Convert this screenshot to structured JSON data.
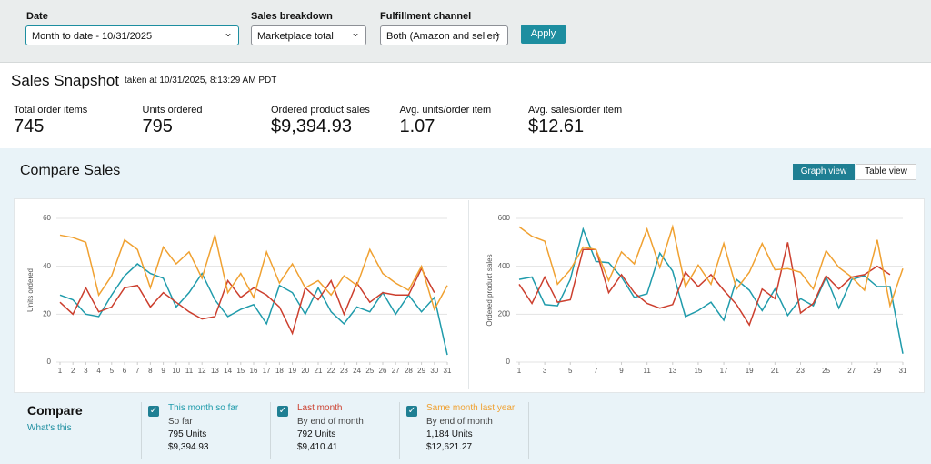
{
  "filters": [
    {
      "label": "Date",
      "value": "Month to date - 10/31/2025"
    },
    {
      "label": "Sales breakdown",
      "value": "Marketplace total"
    },
    {
      "label": "Fulfillment channel",
      "value": "Both (Amazon and seller)"
    }
  ],
  "apply": "Apply",
  "snapshot": {
    "title": "Sales Snapshot",
    "taken": "taken at 10/31/2025, 8:13:29 AM PDT",
    "metrics": [
      {
        "label": "Total order items",
        "value": "745"
      },
      {
        "label": "Units ordered",
        "value": "795"
      },
      {
        "label": "Ordered product sales",
        "value": "$9,394.93"
      },
      {
        "label": "Avg. units/order item",
        "value": "1.07"
      },
      {
        "label": "Avg. sales/order item",
        "value": "$12.61"
      }
    ]
  },
  "compare": {
    "title": "Compare Sales",
    "buttons": [
      "Graph view",
      "Table view"
    ],
    "heading": "Compare",
    "link": "What's this",
    "items": [
      {
        "sub": "So far",
        "units": "795 Units",
        "sales": "$9,394.93"
      },
      {
        "sub": "By end of month",
        "units": "792 Units",
        "sales": "$9,410.41"
      },
      {
        "sub": "By end of month",
        "units": "1,184 Units",
        "sales": "$12,621.27"
      }
    ]
  },
  "chart_data": [
    {
      "type": "line",
      "y_label": "Units ordered",
      "x": [
        1,
        2,
        3,
        4,
        5,
        6,
        7,
        8,
        9,
        10,
        11,
        12,
        13,
        14,
        15,
        16,
        17,
        18,
        19,
        20,
        21,
        22,
        23,
        24,
        25,
        26,
        27,
        28,
        29,
        30,
        31
      ],
      "xlim": [
        1,
        31
      ],
      "xticks": [
        1,
        2,
        3,
        4,
        5,
        6,
        7,
        8,
        9,
        10,
        11,
        12,
        13,
        14,
        15,
        16,
        17,
        18,
        19,
        20,
        21,
        22,
        23,
        24,
        25,
        26,
        27,
        28,
        29,
        30,
        31
      ],
      "ylim": [
        0,
        60
      ],
      "yticks": [
        0,
        20,
        40,
        60
      ],
      "grid": true,
      "series": [
        {
          "name": "This month so far",
          "color": "#1f9bab",
          "values": [
            28,
            26,
            20,
            19,
            28,
            36,
            41,
            37,
            35,
            23,
            29,
            37,
            26,
            19,
            22,
            24,
            16,
            32,
            29,
            20,
            31,
            21,
            16,
            23,
            21,
            29,
            20,
            28,
            21,
            27,
            3
          ]
        },
        {
          "name": "Last month",
          "color": "#cc3f2e",
          "values": [
            25,
            20,
            31,
            21,
            23,
            31,
            32,
            23,
            29,
            25,
            21,
            18,
            19,
            34,
            27,
            31,
            28,
            23,
            12,
            31,
            26,
            34,
            20,
            33,
            25,
            29,
            28,
            28,
            39,
            29,
            null
          ]
        },
        {
          "name": "Same month last year",
          "color": "#f0a131",
          "values": [
            53,
            52,
            50,
            28,
            36,
            51,
            47,
            31,
            48,
            41,
            46,
            35,
            53,
            29,
            37,
            27,
            46,
            33,
            41,
            31,
            34,
            28,
            36,
            32,
            47,
            37,
            33,
            30,
            40,
            22,
            32
          ]
        }
      ]
    },
    {
      "type": "line",
      "y_label": "Ordered product sales",
      "x": [
        1,
        2,
        3,
        4,
        5,
        6,
        7,
        8,
        9,
        10,
        11,
        12,
        13,
        14,
        15,
        16,
        17,
        18,
        19,
        20,
        21,
        22,
        23,
        24,
        25,
        26,
        27,
        28,
        29,
        30,
        31
      ],
      "xlim": [
        1,
        31
      ],
      "xticks": [
        1,
        3,
        5,
        7,
        9,
        11,
        13,
        15,
        17,
        19,
        21,
        23,
        25,
        27,
        29,
        31
      ],
      "ylim": [
        0,
        600
      ],
      "yticks": [
        0,
        200,
        400,
        600
      ],
      "grid": true,
      "series": [
        {
          "name": "This month so far",
          "color": "#1f9bab",
          "values": [
            345,
            355,
            240,
            235,
            345,
            555,
            420,
            415,
            355,
            270,
            285,
            455,
            380,
            190,
            215,
            250,
            175,
            345,
            300,
            215,
            305,
            195,
            265,
            235,
            355,
            225,
            345,
            360,
            315,
            315,
            35
          ]
        },
        {
          "name": "Last month",
          "color": "#cc3f2e",
          "values": [
            325,
            245,
            355,
            250,
            260,
            470,
            470,
            290,
            365,
            290,
            245,
            225,
            240,
            375,
            315,
            365,
            300,
            240,
            155,
            305,
            265,
            500,
            205,
            245,
            360,
            305,
            355,
            365,
            400,
            365,
            null
          ]
        },
        {
          "name": "Same month last year",
          "color": "#f0a131",
          "values": [
            565,
            525,
            505,
            325,
            385,
            480,
            470,
            340,
            460,
            410,
            555,
            395,
            565,
            315,
            405,
            325,
            495,
            305,
            375,
            495,
            385,
            390,
            375,
            305,
            465,
            395,
            355,
            300,
            510,
            235,
            390
          ]
        }
      ]
    }
  ]
}
